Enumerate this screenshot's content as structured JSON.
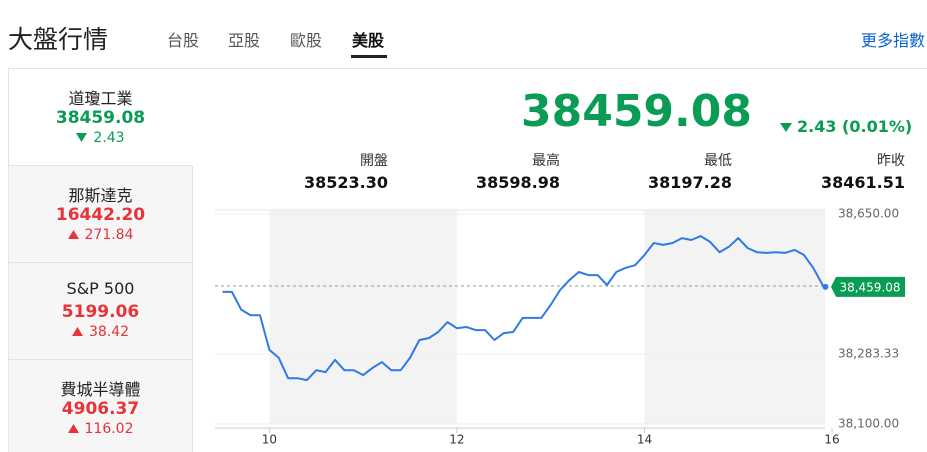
{
  "header": {
    "title": "大盤行情",
    "tabs": [
      "台股",
      "亞股",
      "歐股",
      "美股"
    ],
    "active_tab": 3,
    "more_link": "更多指數"
  },
  "indices": [
    {
      "name": "道瓊工業",
      "value": "38459.08",
      "change": "2.43",
      "direction": "down",
      "selected": true
    },
    {
      "name": "那斯達克",
      "value": "16442.20",
      "change": "271.84",
      "direction": "up",
      "selected": false
    },
    {
      "name": "S&P 500",
      "value": "5199.06",
      "change": "38.42",
      "direction": "up",
      "selected": false
    },
    {
      "name": "費城半導體",
      "value": "4906.37",
      "change": "116.02",
      "direction": "up",
      "selected": false
    }
  ],
  "quote": {
    "value": "38459.08",
    "change": "2.43 (0.01%)",
    "direction": "down",
    "stats": [
      {
        "label": "開盤",
        "value": "38523.30"
      },
      {
        "label": "最高",
        "value": "38598.98"
      },
      {
        "label": "最低",
        "value": "38197.28"
      },
      {
        "label": "昨收",
        "value": "38461.51"
      }
    ]
  },
  "chart_data": {
    "type": "line",
    "x": [
      9.5,
      9.6,
      9.7,
      9.8,
      9.9,
      10.0,
      10.1,
      10.2,
      10.3,
      10.4,
      10.5,
      10.6,
      10.7,
      10.8,
      10.9,
      11.0,
      11.1,
      11.2,
      11.3,
      11.4,
      11.5,
      11.6,
      11.7,
      11.8,
      11.9,
      12.0,
      12.1,
      12.2,
      12.3,
      12.4,
      12.5,
      12.6,
      12.7,
      12.8,
      12.9,
      13.0,
      13.1,
      13.2,
      13.3,
      13.4,
      13.5,
      13.6,
      13.7,
      13.8,
      13.9,
      14.0,
      14.1,
      14.2,
      14.3,
      14.4,
      14.5,
      14.6,
      14.7,
      14.8,
      14.9,
      15.0,
      15.1,
      15.2,
      15.3,
      15.4,
      15.5,
      15.6,
      15.7,
      15.8,
      15.9,
      15.93
    ],
    "series": [
      {
        "name": "道瓊工業",
        "color": "#2f7ae5",
        "values": [
          38446,
          38446,
          38399,
          38385,
          38385,
          38294,
          38273,
          38220,
          38220,
          38215,
          38241,
          38236,
          38268,
          38241,
          38241,
          38228,
          38247,
          38262,
          38241,
          38241,
          38273,
          38320,
          38325,
          38341,
          38367,
          38351,
          38354,
          38346,
          38346,
          38320,
          38338,
          38341,
          38378,
          38378,
          38378,
          38412,
          38451,
          38477,
          38498,
          38490,
          38490,
          38464,
          38498,
          38509,
          38516,
          38543,
          38574,
          38569,
          38574,
          38587,
          38582,
          38592,
          38577,
          38550,
          38564,
          38587,
          38561,
          38550,
          38548,
          38550,
          38548,
          38556,
          38543,
          38509,
          38464,
          38459.08
        ]
      }
    ],
    "xlim": [
      9.42,
      16
    ],
    "xticks": [
      10,
      12,
      14,
      16
    ],
    "ylim": [
      38100,
      38650
    ],
    "yticks": [
      {
        "value": 38650,
        "label": "38,650.00"
      },
      {
        "value": 38283.33,
        "label": "38,283.33"
      },
      {
        "value": 38100,
        "label": "38,100.00"
      }
    ],
    "current_value": {
      "value": 38459.08,
      "label": "38,459.08"
    },
    "current_color": "#0a9c55",
    "grid": true
  }
}
